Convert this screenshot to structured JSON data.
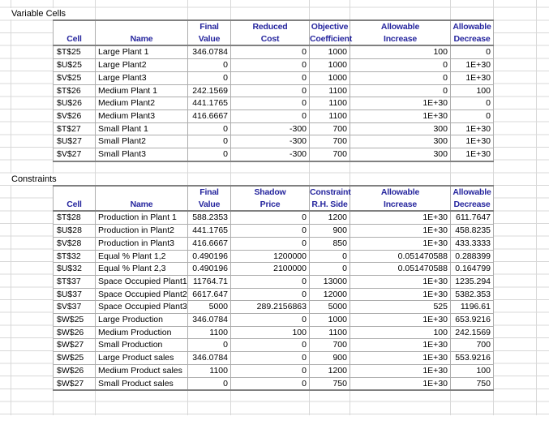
{
  "colors": {
    "header_text": "#26269E",
    "thick_border": "#808080",
    "thin_border": "#ADADAD",
    "gridline": "#D8D8D8"
  },
  "sections": {
    "variable_cells": {
      "label": "Variable Cells",
      "header_line1": [
        "",
        "",
        "Final",
        "Reduced",
        "Objective",
        "Allowable",
        "Allowable"
      ],
      "header_line2": [
        "Cell",
        "Name",
        "Value",
        "Cost",
        "Coefficient",
        "Increase",
        "Decrease"
      ],
      "rows": [
        [
          "$T$25",
          "Large Plant 1",
          "346.0784",
          "0",
          "1000",
          "100",
          "0"
        ],
        [
          "$U$25",
          "Large Plant2",
          "0",
          "0",
          "1000",
          "0",
          "1E+30"
        ],
        [
          "$V$25",
          "Large Plant3",
          "0",
          "0",
          "1000",
          "0",
          "1E+30"
        ],
        [
          "$T$26",
          "Medium Plant 1",
          "242.1569",
          "0",
          "1100",
          "0",
          "100"
        ],
        [
          "$U$26",
          "Medium Plant2",
          "441.1765",
          "0",
          "1100",
          "1E+30",
          "0"
        ],
        [
          "$V$26",
          "Medium Plant3",
          "416.6667",
          "0",
          "1100",
          "1E+30",
          "0"
        ],
        [
          "$T$27",
          "Small Plant 1",
          "0",
          "-300",
          "700",
          "300",
          "1E+30"
        ],
        [
          "$U$27",
          "Small Plant2",
          "0",
          "-300",
          "700",
          "300",
          "1E+30"
        ],
        [
          "$V$27",
          "Small Plant3",
          "0",
          "-300",
          "700",
          "300",
          "1E+30"
        ]
      ]
    },
    "constraints": {
      "label": "Constraints",
      "header_line1": [
        "",
        "",
        "Final",
        "Shadow",
        "Constraint",
        "Allowable",
        "Allowable"
      ],
      "header_line2": [
        "Cell",
        "Name",
        "Value",
        "Price",
        "R.H. Side",
        "Increase",
        "Decrease"
      ],
      "rows": [
        [
          "$T$28",
          "Production in Plant 1",
          "588.2353",
          "0",
          "1200",
          "1E+30",
          "611.7647"
        ],
        [
          "$U$28",
          "Production in Plant2",
          "441.1765",
          "0",
          "900",
          "1E+30",
          "458.8235"
        ],
        [
          "$V$28",
          "Production in Plant3",
          "416.6667",
          "0",
          "850",
          "1E+30",
          "433.3333"
        ],
        [
          "$T$32",
          "Equal % Plant 1,2",
          "0.490196",
          "1200000",
          "0",
          "0.051470588",
          "0.288399"
        ],
        [
          "$U$32",
          "Equal % Plant 2,3",
          "0.490196",
          "2100000",
          "0",
          "0.051470588",
          "0.164799"
        ],
        [
          "$T$37",
          "Space Occupied Plant1",
          "11764.71",
          "0",
          "13000",
          "1E+30",
          "1235.294"
        ],
        [
          "$U$37",
          "Space Occupied Plant2",
          "6617.647",
          "0",
          "12000",
          "1E+30",
          "5382.353"
        ],
        [
          "$V$37",
          "Space Occupied Plant3",
          "5000",
          "289.2156863",
          "5000",
          "525",
          "1196.61"
        ],
        [
          "$W$25",
          "Large Production",
          "346.0784",
          "0",
          "1000",
          "1E+30",
          "653.9216"
        ],
        [
          "$W$26",
          "Medium Production",
          "1100",
          "100",
          "1100",
          "100",
          "242.1569"
        ],
        [
          "$W$27",
          "Small Production",
          "0",
          "0",
          "700",
          "1E+30",
          "700"
        ],
        [
          "$W$25",
          "Large Product sales",
          "346.0784",
          "0",
          "900",
          "1E+30",
          "553.9216"
        ],
        [
          "$W$26",
          "Medium Product sales",
          "1100",
          "0",
          "1200",
          "1E+30",
          "100"
        ],
        [
          "$W$27",
          "Small Product sales",
          "0",
          "0",
          "750",
          "1E+30",
          "750"
        ]
      ]
    }
  }
}
